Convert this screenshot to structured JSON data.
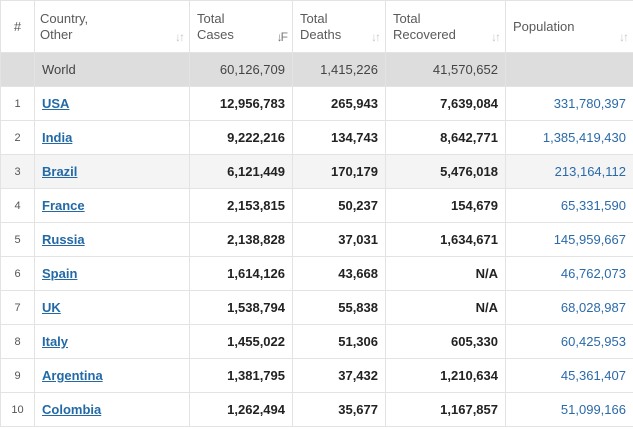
{
  "table": {
    "columns": [
      {
        "key": "index",
        "line1": "#",
        "line2": ""
      },
      {
        "key": "country",
        "line1": "Country,",
        "line2": "Other"
      },
      {
        "key": "total_cases",
        "line1": "Total",
        "line2": "Cases"
      },
      {
        "key": "total_deaths",
        "line1": "Total",
        "line2": "Deaths"
      },
      {
        "key": "total_recovered",
        "line1": "Total",
        "line2": "Recovered"
      },
      {
        "key": "population",
        "line1": "Population",
        "line2": ""
      }
    ],
    "sort": {
      "active_column": "total_cases",
      "active_icon": "sort-descending-icon",
      "inactive_icon": "sort-both-icon"
    },
    "world": {
      "country": "World",
      "total_cases": "60,126,709",
      "total_deaths": "1,415,226",
      "total_recovered": "41,570,652",
      "population": ""
    },
    "rows": [
      {
        "rank": "1",
        "country": "USA",
        "total_cases": "12,956,783",
        "total_deaths": "265,943",
        "total_recovered": "7,639,084",
        "population": "331,780,397"
      },
      {
        "rank": "2",
        "country": "India",
        "total_cases": "9,222,216",
        "total_deaths": "134,743",
        "total_recovered": "8,642,771",
        "population": "1,385,419,430"
      },
      {
        "rank": "3",
        "country": "Brazil",
        "total_cases": "6,121,449",
        "total_deaths": "170,179",
        "total_recovered": "5,476,018",
        "population": "213,164,112"
      },
      {
        "rank": "4",
        "country": "France",
        "total_cases": "2,153,815",
        "total_deaths": "50,237",
        "total_recovered": "154,679",
        "population": "65,331,590"
      },
      {
        "rank": "5",
        "country": "Russia",
        "total_cases": "2,138,828",
        "total_deaths": "37,031",
        "total_recovered": "1,634,671",
        "population": "145,959,667"
      },
      {
        "rank": "6",
        "country": "Spain",
        "total_cases": "1,614,126",
        "total_deaths": "43,668",
        "total_recovered": "N/A",
        "population": "46,762,073"
      },
      {
        "rank": "7",
        "country": "UK",
        "total_cases": "1,538,794",
        "total_deaths": "55,838",
        "total_recovered": "N/A",
        "population": "68,028,987"
      },
      {
        "rank": "8",
        "country": "Italy",
        "total_cases": "1,455,022",
        "total_deaths": "51,306",
        "total_recovered": "605,330",
        "population": "60,425,953"
      },
      {
        "rank": "9",
        "country": "Argentina",
        "total_cases": "1,381,795",
        "total_deaths": "37,432",
        "total_recovered": "1,210,634",
        "population": "45,361,407"
      },
      {
        "rank": "10",
        "country": "Colombia",
        "total_cases": "1,262,494",
        "total_deaths": "35,677",
        "total_recovered": "1,167,857",
        "population": "51,099,166"
      }
    ],
    "colors": {
      "link": "#2369a6",
      "population": "#2b6aa8",
      "world_row_bg": "#dddddd",
      "highlight_row_bg": "#f4f4f4"
    }
  }
}
